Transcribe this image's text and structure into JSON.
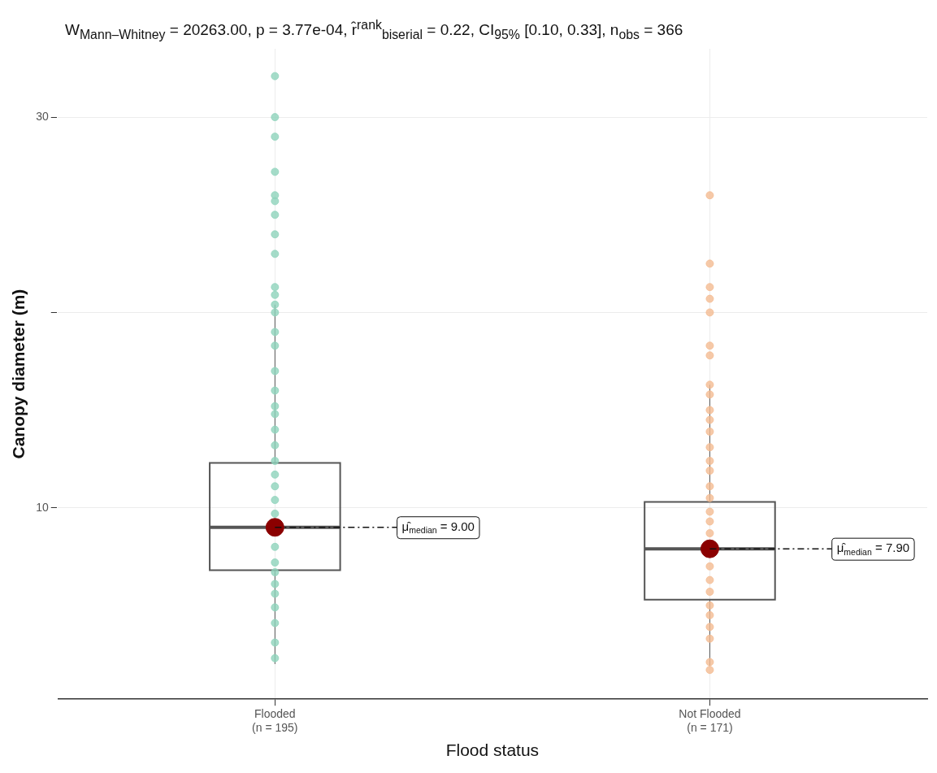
{
  "chart_data": {
    "type": "box",
    "title": "W$_{Mann–Whitney}$ = 20263.00, p = 3.77e-04, r̂$^{rank}$$_{biserial}$ = 0.22, CI$_{95%}$ [0.10, 0.33], n$_{obs}$ = 366",
    "xlabel": "Flood status",
    "ylabel": "Canopy diameter (m)",
    "categories": [
      "Flooded\n(n = 195)",
      "Not Flooded\n(n = 171)"
    ],
    "boxes": [
      {
        "low": 2.0,
        "q1": 6.8,
        "median": 9.0,
        "q3": 12.3,
        "high": 20.4
      },
      {
        "low": 1.9,
        "q1": 5.3,
        "median": 7.9,
        "q3": 10.3,
        "high": 16.3
      }
    ],
    "series": [
      {
        "type": "scatter",
        "color": "#8ed3bc",
        "x": [
          "Flooded\n(n = 195)",
          "Flooded\n(n = 195)",
          "Flooded\n(n = 195)",
          "Flooded\n(n = 195)",
          "Flooded\n(n = 195)",
          "Flooded\n(n = 195)",
          "Flooded\n(n = 195)",
          "Flooded\n(n = 195)",
          "Flooded\n(n = 195)",
          "Flooded\n(n = 195)",
          "Flooded\n(n = 195)",
          "Flooded\n(n = 195)",
          "Flooded\n(n = 195)",
          "Flooded\n(n = 195)",
          "Flooded\n(n = 195)",
          "Flooded\n(n = 195)",
          "Flooded\n(n = 195)",
          "Flooded\n(n = 195)",
          "Flooded\n(n = 195)",
          "Flooded\n(n = 195)",
          "Flooded\n(n = 195)",
          "Flooded\n(n = 195)",
          "Flooded\n(n = 195)",
          "Flooded\n(n = 195)",
          "Flooded\n(n = 195)",
          "Flooded\n(n = 195)",
          "Flooded\n(n = 195)",
          "Flooded\n(n = 195)",
          "Flooded\n(n = 195)",
          "Flooded\n(n = 195)",
          "Flooded\n(n = 195)",
          "Flooded\n(n = 195)",
          "Flooded\n(n = 195)",
          "Flooded\n(n = 195)",
          "Flooded\n(n = 195)"
        ],
        "values": [
          32.1,
          30.0,
          29.0,
          27.2,
          26.0,
          25.7,
          25.0,
          24.0,
          23.0,
          21.3,
          20.9,
          20.4,
          20.0,
          19.0,
          18.3,
          17.0,
          16.0,
          15.2,
          14.8,
          14.0,
          13.2,
          12.4,
          11.7,
          11.1,
          10.4,
          9.7,
          8.0,
          7.2,
          6.7,
          6.1,
          5.6,
          4.9,
          4.1,
          3.1,
          2.3
        ]
      },
      {
        "type": "scatter",
        "color": "#f4bc92",
        "x": [
          "Not Flooded\n(n = 171)",
          "Not Flooded\n(n = 171)",
          "Not Flooded\n(n = 171)",
          "Not Flooded\n(n = 171)",
          "Not Flooded\n(n = 171)",
          "Not Flooded\n(n = 171)",
          "Not Flooded\n(n = 171)",
          "Not Flooded\n(n = 171)",
          "Not Flooded\n(n = 171)",
          "Not Flooded\n(n = 171)",
          "Not Flooded\n(n = 171)",
          "Not Flooded\n(n = 171)",
          "Not Flooded\n(n = 171)",
          "Not Flooded\n(n = 171)",
          "Not Flooded\n(n = 171)",
          "Not Flooded\n(n = 171)",
          "Not Flooded\n(n = 171)",
          "Not Flooded\n(n = 171)",
          "Not Flooded\n(n = 171)",
          "Not Flooded\n(n = 171)",
          "Not Flooded\n(n = 171)",
          "Not Flooded\n(n = 171)",
          "Not Flooded\n(n = 171)",
          "Not Flooded\n(n = 171)",
          "Not Flooded\n(n = 171)",
          "Not Flooded\n(n = 171)",
          "Not Flooded\n(n = 171)",
          "Not Flooded\n(n = 171)",
          "Not Flooded\n(n = 171)"
        ],
        "values": [
          26.0,
          22.5,
          21.3,
          20.7,
          20.0,
          18.3,
          17.8,
          16.3,
          15.8,
          15.0,
          14.5,
          13.9,
          13.1,
          12.4,
          11.9,
          11.1,
          10.5,
          9.8,
          9.3,
          8.7,
          7.0,
          6.3,
          5.7,
          5.0,
          4.5,
          3.9,
          3.3,
          2.1,
          1.7
        ]
      },
      {
        "type": "scatter",
        "color": "#8b0000",
        "x": [
          "Flooded\n(n = 195)",
          "Not Flooded\n(n = 171)"
        ],
        "values": [
          9.0,
          7.9
        ]
      }
    ],
    "annotations": [
      {
        "text": "μ̂$_{median}$ = 9.00",
        "x": "Flooded\n(n = 195)",
        "y": 9.0
      },
      {
        "text": "μ̂$_{median}$ = 7.90",
        "x": "Not Flooded\n(n = 171)",
        "y": 7.9
      }
    ],
    "ylim": [
      0.2,
      33.5
    ],
    "yticks": [
      10,
      {
        "value": 20,
        "label": null
      },
      30
    ],
    "grid": true,
    "legend": false
  }
}
